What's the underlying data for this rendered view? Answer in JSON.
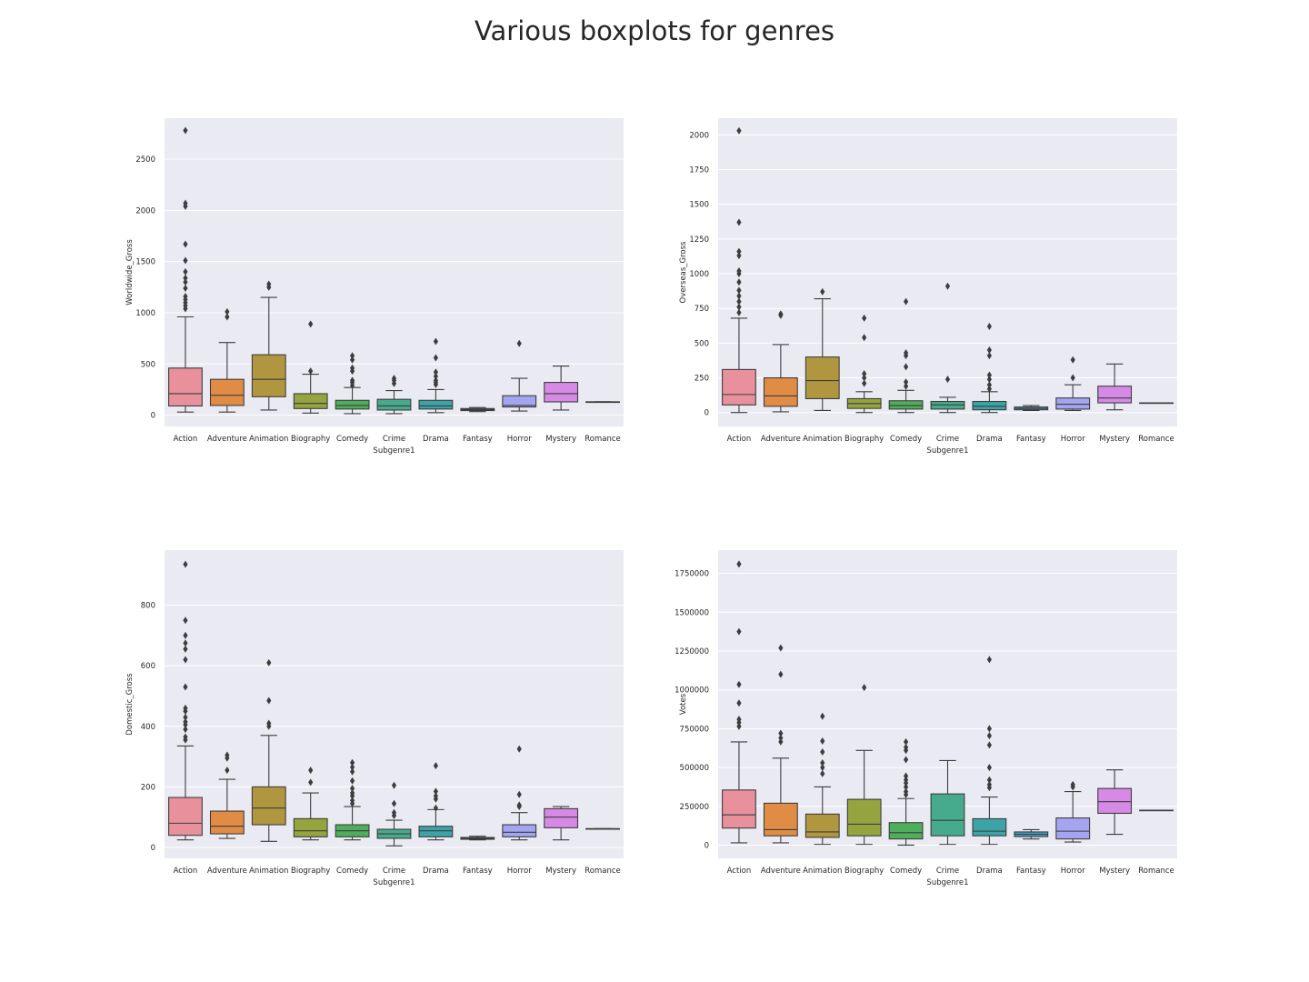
{
  "figure": {
    "title": "Various boxplots for genres",
    "background": "#ffffff",
    "axes_facecolor": "#eaeaf2",
    "grid_color": "#ffffff",
    "line_color": "#3d3d3d"
  },
  "palette": [
    "#e8909b",
    "#e08c45",
    "#b0973f",
    "#95a43f",
    "#4fae5b",
    "#46aa8c",
    "#3ca4a6",
    "#40a3c7",
    "#a4a5f0",
    "#d68ae6",
    "#ea8dbf"
  ],
  "chart_data": [
    {
      "type": "box",
      "title": "",
      "xlabel": "Subgenre1",
      "ylabel": "Worldwide_Gross",
      "categories": [
        "Action",
        "Adventure",
        "Animation",
        "Biography",
        "Comedy",
        "Crime",
        "Drama",
        "Fantasy",
        "Horror",
        "Mystery",
        "Romance"
      ],
      "ylim": [
        -110,
        2900
      ],
      "yticks": [
        0,
        500,
        1000,
        1500,
        2000,
        2500
      ],
      "grid": true,
      "boxes": [
        {
          "whislo": 30,
          "q1": 90,
          "med": 210,
          "q3": 460,
          "whishi": 960,
          "fliers": [
            1040,
            1070,
            1100,
            1130,
            1160,
            1240,
            1300,
            1340,
            1400,
            1510,
            1670,
            2040,
            2070,
            2780
          ]
        },
        {
          "whislo": 30,
          "q1": 95,
          "med": 195,
          "q3": 350,
          "whishi": 710,
          "fliers": [
            960,
            1010
          ]
        },
        {
          "whislo": 50,
          "q1": 180,
          "med": 350,
          "q3": 590,
          "whishi": 1150,
          "fliers": [
            1250,
            1280
          ]
        },
        {
          "whislo": 20,
          "q1": 65,
          "med": 115,
          "q3": 210,
          "whishi": 400,
          "fliers": [
            430,
            890
          ]
        },
        {
          "whislo": 15,
          "q1": 60,
          "med": 95,
          "q3": 145,
          "whishi": 270,
          "fliers": [
            290,
            320,
            340,
            430,
            460,
            540,
            580
          ]
        },
        {
          "whislo": 15,
          "q1": 50,
          "med": 90,
          "q3": 155,
          "whishi": 240,
          "fliers": [
            310,
            340,
            360
          ]
        },
        {
          "whislo": 25,
          "q1": 60,
          "med": 90,
          "q3": 145,
          "whishi": 250,
          "fliers": [
            300,
            320,
            340,
            380,
            420,
            560,
            720
          ]
        },
        {
          "whislo": 35,
          "q1": 45,
          "med": 55,
          "q3": 65,
          "whishi": 75,
          "fliers": []
        },
        {
          "whislo": 40,
          "q1": 80,
          "med": 95,
          "q3": 190,
          "whishi": 360,
          "fliers": [
            700
          ]
        },
        {
          "whislo": 50,
          "q1": 130,
          "med": 210,
          "q3": 320,
          "whishi": 480,
          "fliers": []
        },
        {
          "whislo": 130,
          "q1": 130,
          "med": 130,
          "q3": 130,
          "whishi": 130,
          "fliers": []
        }
      ]
    },
    {
      "type": "box",
      "title": "",
      "xlabel": "Subgenre1",
      "ylabel": "Overseas_Gross",
      "categories": [
        "Action",
        "Adventure",
        "Animation",
        "Biography",
        "Comedy",
        "Crime",
        "Drama",
        "Fantasy",
        "Horror",
        "Mystery",
        "Romance"
      ],
      "ylim": [
        -100,
        2120
      ],
      "yticks": [
        0,
        250,
        500,
        750,
        1000,
        1250,
        1500,
        1750,
        2000
      ],
      "grid": true,
      "boxes": [
        {
          "whislo": 0,
          "q1": 55,
          "med": 130,
          "q3": 310,
          "whishi": 680,
          "fliers": [
            720,
            760,
            800,
            840,
            880,
            940,
            1000,
            1020,
            1130,
            1160,
            1370,
            2030
          ]
        },
        {
          "whislo": 5,
          "q1": 45,
          "med": 120,
          "q3": 250,
          "whishi": 490,
          "fliers": [
            700,
            710
          ]
        },
        {
          "whislo": 15,
          "q1": 100,
          "med": 230,
          "q3": 400,
          "whishi": 820,
          "fliers": [
            870
          ]
        },
        {
          "whislo": 0,
          "q1": 30,
          "med": 65,
          "q3": 100,
          "whishi": 150,
          "fliers": [
            210,
            250,
            280,
            540,
            680
          ]
        },
        {
          "whislo": 0,
          "q1": 25,
          "med": 50,
          "q3": 85,
          "whishi": 160,
          "fliers": [
            190,
            220,
            330,
            410,
            430,
            800
          ]
        },
        {
          "whislo": 0,
          "q1": 25,
          "med": 55,
          "q3": 80,
          "whishi": 110,
          "fliers": [
            240,
            910
          ]
        },
        {
          "whislo": 0,
          "q1": 20,
          "med": 45,
          "q3": 80,
          "whishi": 150,
          "fliers": [
            170,
            200,
            240,
            270,
            410,
            450,
            620
          ]
        },
        {
          "whislo": 15,
          "q1": 20,
          "med": 30,
          "q3": 40,
          "whishi": 50,
          "fliers": []
        },
        {
          "whislo": 15,
          "q1": 25,
          "med": 60,
          "q3": 105,
          "whishi": 200,
          "fliers": [
            250,
            380
          ]
        },
        {
          "whislo": 20,
          "q1": 70,
          "med": 105,
          "q3": 190,
          "whishi": 350,
          "fliers": []
        },
        {
          "whislo": 70,
          "q1": 70,
          "med": 70,
          "q3": 70,
          "whishi": 70,
          "fliers": []
        }
      ]
    },
    {
      "type": "box",
      "title": "",
      "xlabel": "Subgenre1",
      "ylabel": "Domestic_Gross",
      "categories": [
        "Action",
        "Adventure",
        "Animation",
        "Biography",
        "Comedy",
        "Crime",
        "Drama",
        "Fantasy",
        "Horror",
        "Mystery",
        "Romance"
      ],
      "ylim": [
        -36,
        982
      ],
      "yticks": [
        0,
        200,
        400,
        600,
        800
      ],
      "grid": true,
      "boxes": [
        {
          "whislo": 25,
          "q1": 40,
          "med": 80,
          "q3": 165,
          "whishi": 335,
          "fliers": [
            355,
            365,
            390,
            405,
            415,
            430,
            450,
            460,
            530,
            620,
            655,
            675,
            700,
            750,
            935
          ]
        },
        {
          "whislo": 30,
          "q1": 45,
          "med": 70,
          "q3": 120,
          "whishi": 225,
          "fliers": [
            255,
            295,
            305
          ]
        },
        {
          "whislo": 20,
          "q1": 75,
          "med": 130,
          "q3": 200,
          "whishi": 370,
          "fliers": [
            400,
            410,
            485,
            610
          ]
        },
        {
          "whislo": 25,
          "q1": 35,
          "med": 55,
          "q3": 95,
          "whishi": 180,
          "fliers": [
            215,
            255
          ]
        },
        {
          "whislo": 25,
          "q1": 35,
          "med": 55,
          "q3": 75,
          "whishi": 135,
          "fliers": [
            145,
            155,
            170,
            180,
            195,
            220,
            250,
            265,
            280
          ]
        },
        {
          "whislo": 5,
          "q1": 30,
          "med": 45,
          "q3": 60,
          "whishi": 90,
          "fliers": [
            105,
            115,
            145,
            205
          ]
        },
        {
          "whislo": 25,
          "q1": 35,
          "med": 55,
          "q3": 70,
          "whishi": 125,
          "fliers": [
            130,
            160,
            170,
            185,
            270
          ]
        },
        {
          "whislo": 25,
          "q1": 27,
          "med": 30,
          "q3": 33,
          "whishi": 37,
          "fliers": []
        },
        {
          "whislo": 25,
          "q1": 35,
          "med": 50,
          "q3": 75,
          "whishi": 115,
          "fliers": [
            135,
            140,
            175,
            325
          ]
        },
        {
          "whislo": 25,
          "q1": 65,
          "med": 100,
          "q3": 128,
          "whishi": 135,
          "fliers": []
        },
        {
          "whislo": 62,
          "q1": 62,
          "med": 62,
          "q3": 62,
          "whishi": 62,
          "fliers": []
        }
      ]
    },
    {
      "type": "box",
      "title": "",
      "xlabel": "Subgenre1",
      "ylabel": "Votes",
      "categories": [
        "Action",
        "Adventure",
        "Animation",
        "Biography",
        "Comedy",
        "Crime",
        "Drama",
        "Fantasy",
        "Horror",
        "Mystery",
        "Romance"
      ],
      "ylim": [
        -85000,
        1900000
      ],
      "yticks": [
        0,
        250000,
        500000,
        750000,
        1000000,
        1250000,
        1500000,
        1750000
      ],
      "grid": true,
      "boxes": [
        {
          "whislo": 15000,
          "q1": 110000,
          "med": 195000,
          "q3": 355000,
          "whishi": 665000,
          "fliers": [
            765000,
            790000,
            810000,
            915000,
            1035000,
            1375000,
            1810000
          ]
        },
        {
          "whislo": 15000,
          "q1": 60000,
          "med": 100000,
          "q3": 270000,
          "whishi": 560000,
          "fliers": [
            665000,
            690000,
            720000,
            1100000,
            1270000
          ]
        },
        {
          "whislo": 5000,
          "q1": 50000,
          "med": 85000,
          "q3": 200000,
          "whishi": 375000,
          "fliers": [
            460000,
            500000,
            530000,
            600000,
            670000,
            830000
          ]
        },
        {
          "whislo": 5000,
          "q1": 60000,
          "med": 135000,
          "q3": 295000,
          "whishi": 610000,
          "fliers": [
            1015000
          ]
        },
        {
          "whislo": 0,
          "q1": 40000,
          "med": 80000,
          "q3": 145000,
          "whishi": 300000,
          "fliers": [
            325000,
            345000,
            375000,
            400000,
            420000,
            445000,
            550000,
            610000,
            630000,
            665000
          ]
        },
        {
          "whislo": 5000,
          "q1": 60000,
          "med": 160000,
          "q3": 330000,
          "whishi": 545000,
          "fliers": []
        },
        {
          "whislo": 5000,
          "q1": 60000,
          "med": 90000,
          "q3": 170000,
          "whishi": 310000,
          "fliers": [
            370000,
            390000,
            420000,
            500000,
            645000,
            705000,
            750000,
            1195000
          ]
        },
        {
          "whislo": 40000,
          "q1": 55000,
          "med": 70000,
          "q3": 85000,
          "whishi": 100000,
          "fliers": []
        },
        {
          "whislo": 20000,
          "q1": 40000,
          "med": 90000,
          "q3": 175000,
          "whishi": 345000,
          "fliers": [
            375000,
            390000
          ]
        },
        {
          "whislo": 70000,
          "q1": 205000,
          "med": 280000,
          "q3": 365000,
          "whishi": 485000,
          "fliers": []
        },
        {
          "whislo": 225000,
          "q1": 225000,
          "med": 225000,
          "q3": 225000,
          "whishi": 225000,
          "fliers": []
        }
      ]
    }
  ]
}
